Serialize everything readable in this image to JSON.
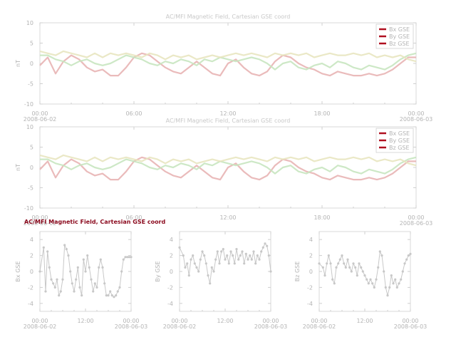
{
  "colors": {
    "bx": "#e8b4b4",
    "by": "#c8e6c0",
    "bz": "#e8e6c0",
    "small": "#c8c8c8",
    "marker": "#b01020",
    "highlight_title": "#8b0a1e"
  },
  "chart_data": [
    {
      "type": "line",
      "title": "AC/MFI  Magnetic Field, Cartesian GSE coord",
      "ylabel": "nT",
      "ylim": [
        -10,
        10
      ],
      "yticks": [
        "10",
        "5",
        "0",
        "-5",
        "-10"
      ],
      "x_ticks": [
        "00:00",
        "06:00",
        "12:00",
        "18:00",
        "00:00"
      ],
      "x_dates": [
        "2008-06-02",
        "",
        "",
        "",
        "2008-06-03"
      ],
      "xlim_hours": [
        0,
        24
      ],
      "legend": [
        "Bx  GSE",
        "By  GSE",
        "Bz  GSE"
      ],
      "legend_position": "top-right",
      "series": [
        {
          "name": "Bx  GSE",
          "x": [
            0,
            0.5,
            1,
            1.5,
            2,
            2.5,
            3,
            3.5,
            4,
            4.5,
            5,
            5.5,
            6,
            6.5,
            7,
            7.5,
            8,
            8.5,
            9,
            9.5,
            10,
            10.5,
            11,
            11.5,
            12,
            12.5,
            13,
            13.5,
            14,
            14.5,
            15,
            15.5,
            16,
            16.5,
            17,
            17.5,
            18,
            18.5,
            19,
            19.5,
            20,
            20.5,
            21,
            21.5,
            22,
            22.5,
            23,
            23.5,
            24
          ],
          "y": [
            -0.5,
            1.5,
            -2.5,
            0.5,
            2,
            1,
            -1,
            -2,
            -1.5,
            -3,
            -3,
            -1,
            1.5,
            2.5,
            2,
            0.5,
            -1,
            -2,
            -2.5,
            -1,
            0.5,
            -1,
            -2.5,
            -3,
            0,
            1,
            -1,
            -2.5,
            -3,
            -2,
            0.5,
            2,
            1.5,
            0,
            -1,
            -1.5,
            -2.5,
            -3,
            -2,
            -2.5,
            -3,
            -3,
            -2.5,
            -3,
            -2.5,
            -1.5,
            0,
            1.5,
            1.5
          ]
        },
        {
          "name": "By  GSE",
          "x": [
            0,
            0.5,
            1,
            1.5,
            2,
            2.5,
            3,
            3.5,
            4,
            4.5,
            5,
            5.5,
            6,
            6.5,
            7,
            7.5,
            8,
            8.5,
            9,
            9.5,
            10,
            10.5,
            11,
            11.5,
            12,
            12.5,
            13,
            13.5,
            14,
            14.5,
            15,
            15.5,
            16,
            16.5,
            17,
            17.5,
            18,
            18.5,
            19,
            19.5,
            20,
            20.5,
            21,
            21.5,
            22,
            22.5,
            23,
            23.5,
            24
          ],
          "y": [
            2,
            2,
            1,
            0.5,
            -0.5,
            0.5,
            1,
            0,
            -0.5,
            0,
            1,
            2,
            1.5,
            1,
            0,
            -0.5,
            0.5,
            0,
            1,
            0.5,
            -0.5,
            1,
            0.5,
            1.5,
            1,
            0.5,
            1,
            1.5,
            1,
            0,
            -1.5,
            0,
            0.5,
            -1,
            -1.5,
            -0.5,
            0,
            -1,
            0.5,
            0,
            -1,
            -1.5,
            -0.5,
            -1,
            -1.5,
            -0.5,
            1,
            2,
            2.5
          ]
        },
        {
          "name": "Bz  GSE",
          "x": [
            0,
            0.5,
            1,
            1.5,
            2,
            2.5,
            3,
            3.5,
            4,
            4.5,
            5,
            5.5,
            6,
            6.5,
            7,
            7.5,
            8,
            8.5,
            9,
            9.5,
            10,
            10.5,
            11,
            11.5,
            12,
            12.5,
            13,
            13.5,
            14,
            14.5,
            15,
            15.5,
            16,
            16.5,
            17,
            17.5,
            18,
            18.5,
            19,
            19.5,
            20,
            20.5,
            21,
            21.5,
            22,
            22.5,
            23,
            23.5,
            24
          ],
          "y": [
            3,
            2.5,
            2,
            3,
            2.5,
            2,
            1.5,
            2.5,
            1.5,
            2.5,
            2,
            2.5,
            2,
            1.5,
            2.5,
            2,
            1,
            2,
            1.5,
            2,
            1,
            1.5,
            2,
            1.5,
            2,
            2.5,
            2,
            2.5,
            2,
            1.5,
            2.5,
            2,
            2.5,
            2,
            2.5,
            1.5,
            2,
            2.5,
            2,
            2,
            2.5,
            2,
            2.5,
            1.5,
            2,
            1.5,
            2,
            1,
            0.5
          ]
        }
      ]
    },
    {
      "type": "line",
      "title": "AC/MFI  Magnetic Field, Cartesian GSE coord",
      "ylabel": "nT",
      "ylim": [
        -10,
        10
      ],
      "yticks": [
        "10",
        "5",
        "0",
        "-5",
        "-10"
      ],
      "x_ticks": [
        "00:00",
        "06:00",
        "12:00",
        "18:00",
        "00:00"
      ],
      "x_dates": [
        "2008-06-02",
        "",
        "",
        "",
        "2008-06-03"
      ],
      "xlim_hours": [
        0,
        24
      ],
      "legend": [
        "Bx  GSE",
        "By  GSE",
        "Bz  GSE"
      ],
      "legend_position": "top-right",
      "series": [
        {
          "name": "Bx  GSE",
          "x": [
            0,
            0.5,
            1,
            1.5,
            2,
            2.5,
            3,
            3.5,
            4,
            4.5,
            5,
            5.5,
            6,
            6.5,
            7,
            7.5,
            8,
            8.5,
            9,
            9.5,
            10,
            10.5,
            11,
            11.5,
            12,
            12.5,
            13,
            13.5,
            14,
            14.5,
            15,
            15.5,
            16,
            16.5,
            17,
            17.5,
            18,
            18.5,
            19,
            19.5,
            20,
            20.5,
            21,
            21.5,
            22,
            22.5,
            23,
            23.5,
            24
          ],
          "y": [
            -0.5,
            1.5,
            -2.5,
            0.5,
            2,
            1,
            -1,
            -2,
            -1.5,
            -3,
            -3,
            -1,
            1.5,
            2.5,
            2,
            0.5,
            -1,
            -2,
            -2.5,
            -1,
            0.5,
            -1,
            -2.5,
            -3,
            0,
            1,
            -1,
            -2.5,
            -3,
            -2,
            0.5,
            2,
            1.5,
            0,
            -1,
            -1.5,
            -2.5,
            -3,
            -2,
            -2.5,
            -3,
            -3,
            -2.5,
            -3,
            -2.5,
            -1.5,
            0,
            1.5,
            1.5
          ]
        },
        {
          "name": "By  GSE",
          "x": [
            0,
            0.5,
            1,
            1.5,
            2,
            2.5,
            3,
            3.5,
            4,
            4.5,
            5,
            5.5,
            6,
            6.5,
            7,
            7.5,
            8,
            8.5,
            9,
            9.5,
            10,
            10.5,
            11,
            11.5,
            12,
            12.5,
            13,
            13.5,
            14,
            14.5,
            15,
            15.5,
            16,
            16.5,
            17,
            17.5,
            18,
            18.5,
            19,
            19.5,
            20,
            20.5,
            21,
            21.5,
            22,
            22.5,
            23,
            23.5,
            24
          ],
          "y": [
            2,
            2,
            1,
            0.5,
            -0.5,
            0.5,
            1,
            0,
            -0.5,
            0,
            1,
            2,
            1.5,
            1,
            0,
            -0.5,
            0.5,
            0,
            1,
            0.5,
            -0.5,
            1,
            0.5,
            1.5,
            1,
            0.5,
            1,
            1.5,
            1,
            0,
            -1.5,
            0,
            0.5,
            -1,
            -1.5,
            -0.5,
            0,
            -1,
            0.5,
            0,
            -1,
            -1.5,
            -0.5,
            -1,
            -1.5,
            -0.5,
            1,
            2,
            2.5
          ]
        },
        {
          "name": "Bz  GSE",
          "x": [
            0,
            0.5,
            1,
            1.5,
            2,
            2.5,
            3,
            3.5,
            4,
            4.5,
            5,
            5.5,
            6,
            6.5,
            7,
            7.5,
            8,
            8.5,
            9,
            9.5,
            10,
            10.5,
            11,
            11.5,
            12,
            12.5,
            13,
            13.5,
            14,
            14.5,
            15,
            15.5,
            16,
            16.5,
            17,
            17.5,
            18,
            18.5,
            19,
            19.5,
            20,
            20.5,
            21,
            21.5,
            22,
            22.5,
            23,
            23.5,
            24
          ],
          "y": [
            3,
            2.5,
            2,
            3,
            2.5,
            2,
            1.5,
            2.5,
            1.5,
            2.5,
            2,
            2.5,
            2,
            1.5,
            2.5,
            2,
            1,
            2,
            1.5,
            2,
            1,
            1.5,
            2,
            1.5,
            2,
            2.5,
            2,
            2.5,
            2,
            1.5,
            2.5,
            2,
            2.5,
            2,
            2.5,
            1.5,
            2,
            2.5,
            2,
            2,
            2.5,
            2,
            2.5,
            1.5,
            2,
            1.5,
            2,
            1,
            0.5
          ]
        }
      ]
    },
    {
      "type": "scatter",
      "title": "AC/MFI  Magnetic Field, Cartesian GSE coord",
      "ylabel": "Bx  GSE",
      "ylim": [
        -5,
        5
      ],
      "yticks": [
        "4",
        "2",
        "0",
        "-2",
        "-4"
      ],
      "x_ticks": [
        "00:00",
        "12:00",
        "00:00"
      ],
      "x_dates": [
        "2008-06-02",
        "",
        "2008-06-03"
      ],
      "xlim_hours": [
        0,
        24
      ],
      "series": [
        {
          "x": [
            0,
            1,
            1.5,
            2,
            2.5,
            3,
            3.5,
            4,
            4.5,
            5,
            5.5,
            6,
            6.5,
            7,
            7.5,
            8,
            8.5,
            9,
            9.5,
            10,
            10.5,
            11,
            11.5,
            12,
            12.5,
            13,
            13.5,
            14,
            14.5,
            15,
            15.5,
            16,
            16.5,
            17,
            17.5,
            18,
            18.5,
            19,
            19.5,
            20,
            20.5,
            21,
            21.5,
            22,
            22.5,
            23,
            23.5,
            24
          ],
          "y": [
            0,
            3,
            -2.5,
            2.5,
            0.5,
            -1,
            -1.5,
            -2,
            -1,
            -3,
            -2.5,
            -1,
            3.3,
            2.8,
            2,
            0,
            -1.5,
            -2.5,
            -1,
            0.5,
            -2,
            -3,
            1.5,
            0,
            2,
            0.5,
            -1,
            -2.5,
            -1.5,
            -2,
            0.5,
            1.5,
            0.5,
            -1.5,
            -3,
            -3,
            -2.5,
            -3,
            -3.2,
            -3,
            -2.5,
            -2,
            0,
            1.5,
            1.8,
            1.8,
            1.8,
            1.8
          ]
        }
      ]
    },
    {
      "type": "scatter",
      "title": "",
      "ylabel": "By  GSE",
      "ylim": [
        -5,
        5
      ],
      "yticks": [
        "4",
        "2",
        "0",
        "-2",
        "-4"
      ],
      "x_ticks": [
        "00:00",
        "12:00",
        "00:00"
      ],
      "x_dates": [
        "2008-06-02",
        "",
        "2008-06-03"
      ],
      "xlim_hours": [
        0,
        24
      ],
      "series": [
        {
          "x": [
            0,
            1,
            1.5,
            2,
            2.5,
            3,
            3.5,
            4,
            4.5,
            5,
            5.5,
            6,
            6.5,
            7,
            7.5,
            8,
            8.5,
            9,
            9.5,
            10,
            10.5,
            11,
            11.5,
            12,
            12.5,
            13,
            13.5,
            14,
            14.5,
            15,
            15.5,
            16,
            16.5,
            17,
            17.5,
            18,
            18.5,
            19,
            19.5,
            20,
            20.5,
            21,
            21.5,
            22,
            22.5,
            23,
            23.5,
            24
          ],
          "y": [
            3,
            2,
            0.5,
            1,
            -0.5,
            1.5,
            2,
            1,
            0.5,
            0,
            1.5,
            2.5,
            2,
            1,
            -0.5,
            -1.5,
            0.5,
            0,
            1.5,
            2.5,
            1,
            2.5,
            2.8,
            1.5,
            2,
            1,
            2.5,
            2,
            1,
            2.8,
            1.5,
            2,
            2.5,
            1,
            2.2,
            1.5,
            2,
            1.5,
            2.5,
            1,
            2,
            1.5,
            2.5,
            3,
            3.5,
            3.2,
            2,
            0
          ]
        }
      ]
    },
    {
      "type": "scatter",
      "title": "",
      "ylabel": "Bz  GSE",
      "ylim": [
        -5,
        5
      ],
      "yticks": [
        "4",
        "2",
        "0",
        "-2",
        "-4"
      ],
      "x_ticks": [
        "00:00",
        "12:00",
        "00:00"
      ],
      "x_dates": [
        "2008-06-02",
        "",
        "2008-06-03"
      ],
      "xlim_hours": [
        0,
        24
      ],
      "series": [
        {
          "x": [
            0,
            1,
            1.5,
            2,
            2.5,
            3,
            3.5,
            4,
            4.5,
            5,
            5.5,
            6,
            6.5,
            7,
            7.5,
            8,
            8.5,
            9,
            9.5,
            10,
            10.5,
            11,
            11.5,
            12,
            12.5,
            13,
            13.5,
            14,
            14.5,
            15,
            15.5,
            16,
            16.5,
            17,
            17.5,
            18,
            18.5,
            19,
            19.5,
            20,
            20.5,
            21,
            21.5,
            22,
            22.5,
            23,
            23.5,
            24
          ],
          "y": [
            1,
            0.5,
            -0.5,
            1,
            2,
            1,
            -1,
            -1.5,
            0.5,
            1,
            1.5,
            2,
            1,
            0.5,
            1.5,
            0.5,
            0,
            1,
            0.5,
            -0.5,
            1,
            0.5,
            0,
            -0.5,
            -1,
            -1.5,
            -1,
            -1.5,
            -2,
            -1,
            0.5,
            2.5,
            2,
            0,
            -2,
            -3,
            -2,
            -0.5,
            -1.5,
            -1,
            -2,
            -1.5,
            -1,
            0,
            1,
            1.5,
            2,
            2.2
          ]
        }
      ]
    }
  ]
}
